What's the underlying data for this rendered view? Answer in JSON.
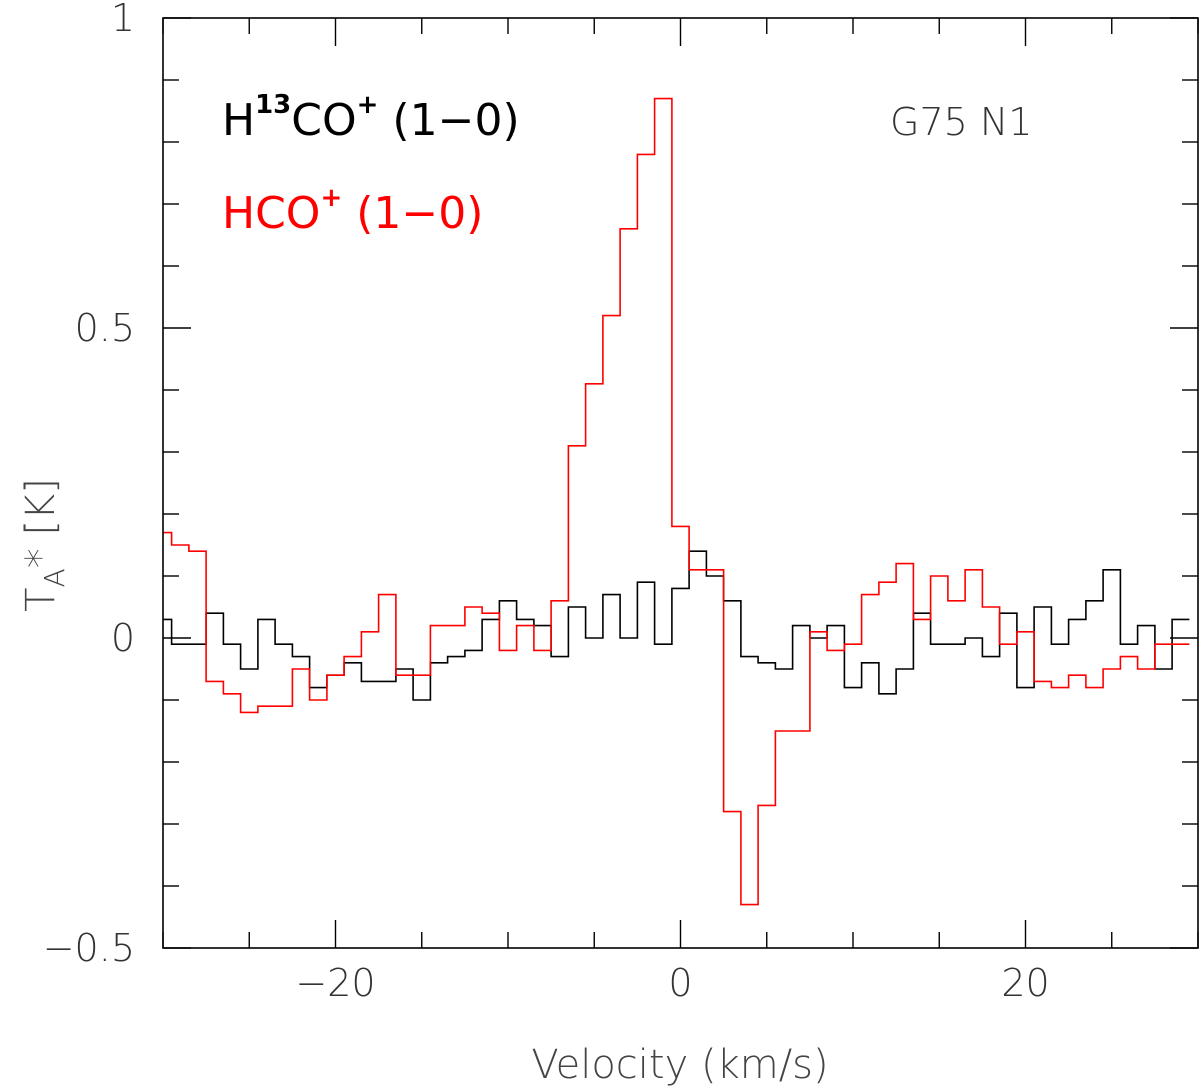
{
  "chart_data": {
    "type": "line",
    "step": true,
    "xlabel": "Velocity (km/s)",
    "ylabel_main": "T",
    "ylabel_sub": "A",
    "ylabel_rest": "* [K]",
    "xlim": [
      -30,
      30
    ],
    "ylim": [
      -0.5,
      1
    ],
    "x_ticks_major": [
      -20,
      0,
      20
    ],
    "x_tick_labels": [
      "−20",
      "0",
      "20"
    ],
    "y_ticks_major": [
      -0.5,
      0,
      0.5,
      1
    ],
    "y_tick_labels": [
      "−0.5",
      "0",
      "0.5",
      "1"
    ],
    "annotation": "G75 N1",
    "legend": [
      {
        "pre": "H",
        "sup1": "13",
        "mid": "CO",
        "sup2": "+",
        "post": " (1−0)",
        "color": "#000000"
      },
      {
        "pre": "HCO",
        "sup1": "",
        "mid": "",
        "sup2": "+",
        "post": " (1−0)",
        "color": "#ff0000"
      }
    ],
    "series": [
      {
        "name": "H13CO+ (1-0)",
        "color": "#000000",
        "x": [
          -30,
          -29,
          -28,
          -27,
          -26,
          -25,
          -24,
          -23,
          -22,
          -21,
          -20,
          -19,
          -18,
          -17,
          -16,
          -15,
          -14,
          -13,
          -12,
          -11,
          -10,
          -9,
          -8,
          -7,
          -6,
          -5,
          -4,
          -3,
          -2,
          -1,
          0,
          1,
          2,
          3,
          4,
          5,
          6,
          7,
          8,
          9,
          10,
          11,
          12,
          13,
          14,
          15,
          16,
          17,
          18,
          19,
          20,
          21,
          22,
          23,
          24,
          25,
          26,
          27,
          28,
          29
        ],
        "values": [
          0.03,
          -0.01,
          -0.01,
          0.04,
          -0.01,
          -0.05,
          0.03,
          -0.01,
          -0.03,
          -0.08,
          -0.06,
          -0.04,
          -0.07,
          -0.07,
          -0.05,
          -0.1,
          -0.04,
          -0.03,
          -0.02,
          0.03,
          0.06,
          0.03,
          0.02,
          -0.03,
          0.05,
          0.0,
          0.07,
          0.0,
          0.09,
          -0.01,
          0.08,
          0.14,
          0.1,
          0.06,
          -0.03,
          -0.04,
          -0.05,
          0.02,
          0.0,
          0.02,
          -0.08,
          -0.04,
          -0.09,
          -0.05,
          0.04,
          -0.01,
          -0.01,
          0.0,
          -0.03,
          0.04,
          -0.08,
          0.05,
          -0.01,
          0.03,
          0.06,
          0.11,
          -0.01,
          0.02,
          -0.05,
          0.03
        ]
      },
      {
        "name": "HCO+ (1-0)",
        "color": "#ff0000",
        "x": [
          -30,
          -29,
          -28,
          -27,
          -26,
          -25,
          -24,
          -23,
          -22,
          -21,
          -20,
          -19,
          -18,
          -17,
          -16,
          -15,
          -14,
          -13,
          -12,
          -11,
          -10,
          -9,
          -8,
          -7,
          -6,
          -5,
          -4,
          -3,
          -2,
          -1,
          0,
          1,
          2,
          3,
          4,
          5,
          6,
          7,
          8,
          9,
          10,
          11,
          12,
          13,
          14,
          15,
          16,
          17,
          18,
          19,
          20,
          21,
          22,
          23,
          24,
          25,
          26,
          27,
          28,
          29
        ],
        "values": [
          0.17,
          0.15,
          0.14,
          -0.07,
          -0.09,
          -0.12,
          -0.11,
          -0.11,
          -0.05,
          -0.1,
          -0.06,
          -0.03,
          0.01,
          0.07,
          -0.06,
          -0.06,
          0.02,
          0.02,
          0.05,
          0.04,
          -0.02,
          0.02,
          -0.02,
          0.06,
          0.31,
          0.41,
          0.52,
          0.66,
          0.78,
          0.87,
          0.18,
          0.11,
          0.11,
          -0.28,
          -0.43,
          -0.27,
          -0.15,
          -0.15,
          0.01,
          -0.02,
          -0.01,
          0.07,
          0.09,
          0.12,
          0.03,
          0.1,
          0.06,
          0.11,
          0.05,
          -0.01,
          0.01,
          -0.07,
          -0.08,
          -0.06,
          -0.08,
          -0.05,
          -0.03,
          -0.05,
          -0.01,
          -0.01
        ]
      }
    ]
  }
}
